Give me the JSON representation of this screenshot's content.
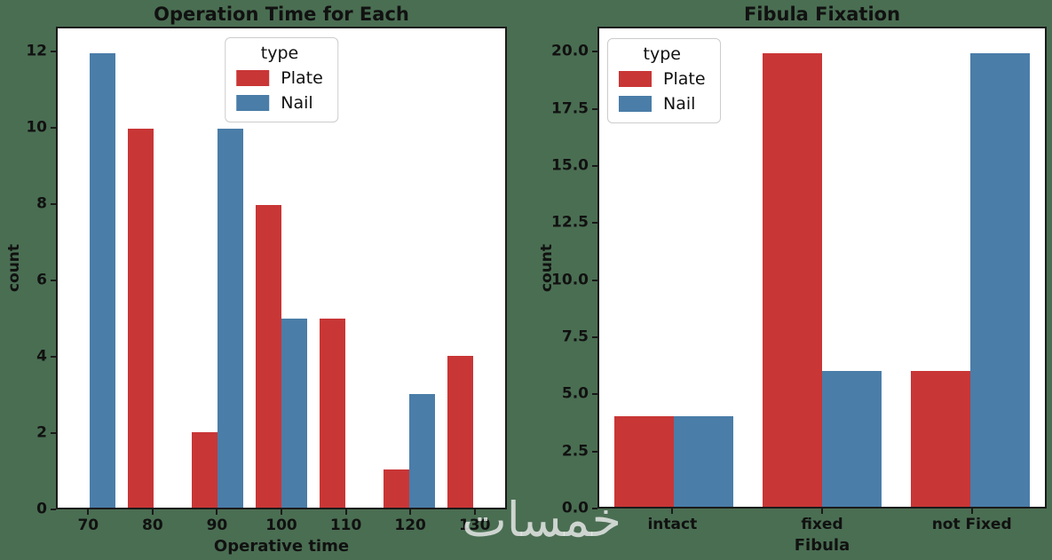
{
  "background_color": "#4A6E52",
  "watermark_text": "خمسات",
  "legend": {
    "title": "type",
    "entries": [
      {
        "label": "Plate",
        "color": "#C93636"
      },
      {
        "label": "Nail",
        "color": "#4A7DA8"
      }
    ]
  },
  "chart_data": [
    {
      "type": "bar",
      "title": "Operation Time for Each",
      "xlabel": "Operative time",
      "ylabel": "count",
      "categories": [
        "70",
        "80",
        "90",
        "100",
        "110",
        "120",
        "130"
      ],
      "series": [
        {
          "name": "Plate",
          "color": "#C93636",
          "values": [
            0,
            10,
            2,
            8,
            5,
            1,
            4
          ]
        },
        {
          "name": "Nail",
          "color": "#4A7DA8",
          "values": [
            12,
            0,
            10,
            5,
            0,
            3,
            0
          ]
        }
      ],
      "yticks": [
        "0",
        "2",
        "4",
        "6",
        "8",
        "10",
        "12"
      ],
      "ylim": [
        0,
        12.65
      ],
      "grid": false,
      "legend_position": "top-center"
    },
    {
      "type": "bar",
      "title": "Fibula Fixation",
      "xlabel": "Fibula",
      "ylabel": "count",
      "categories": [
        "intact",
        "fixed",
        "not Fixed"
      ],
      "series": [
        {
          "name": "Plate",
          "color": "#C93636",
          "values": [
            4,
            20,
            6
          ]
        },
        {
          "name": "Nail",
          "color": "#4A7DA8",
          "values": [
            4,
            6,
            20
          ]
        }
      ],
      "yticks": [
        "0.0",
        "2.5",
        "5.0",
        "7.5",
        "10.0",
        "12.5",
        "15.0",
        "17.5",
        "20.0"
      ],
      "ylim": [
        0,
        21.1
      ],
      "grid": false,
      "legend_position": "top-left"
    }
  ]
}
